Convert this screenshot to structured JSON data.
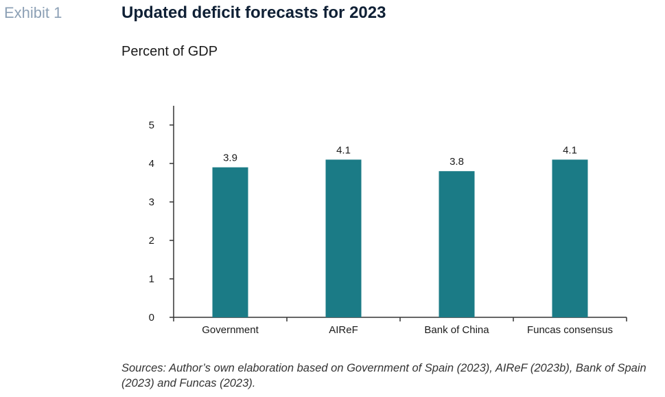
{
  "header": {
    "exhibit_label": "Exhibit 1",
    "title": "Updated deficit forecasts for 2023",
    "subtitle": "Percent of GDP"
  },
  "colors": {
    "bar": "#1b7b86",
    "axis": "#333333",
    "exhibit_label": "#8ca0b5"
  },
  "chart_data": {
    "type": "bar",
    "categories": [
      "Government",
      "AIReF",
      "Bank of China",
      "Funcas consensus"
    ],
    "values": [
      3.9,
      4.1,
      3.8,
      4.1
    ],
    "data_labels": [
      "3.9",
      "4.1",
      "3.8",
      "4.1"
    ],
    "y_ticks": [
      "0",
      "1",
      "2",
      "3",
      "4",
      "5"
    ],
    "ylim": [
      0,
      5.5
    ],
    "grid": false,
    "legend": "none"
  },
  "footer": {
    "source": "Sources: Author’s own elaboration based on Government of Spain (2023), AIReF (2023b), Bank of Spain (2023) and Funcas (2023)."
  }
}
